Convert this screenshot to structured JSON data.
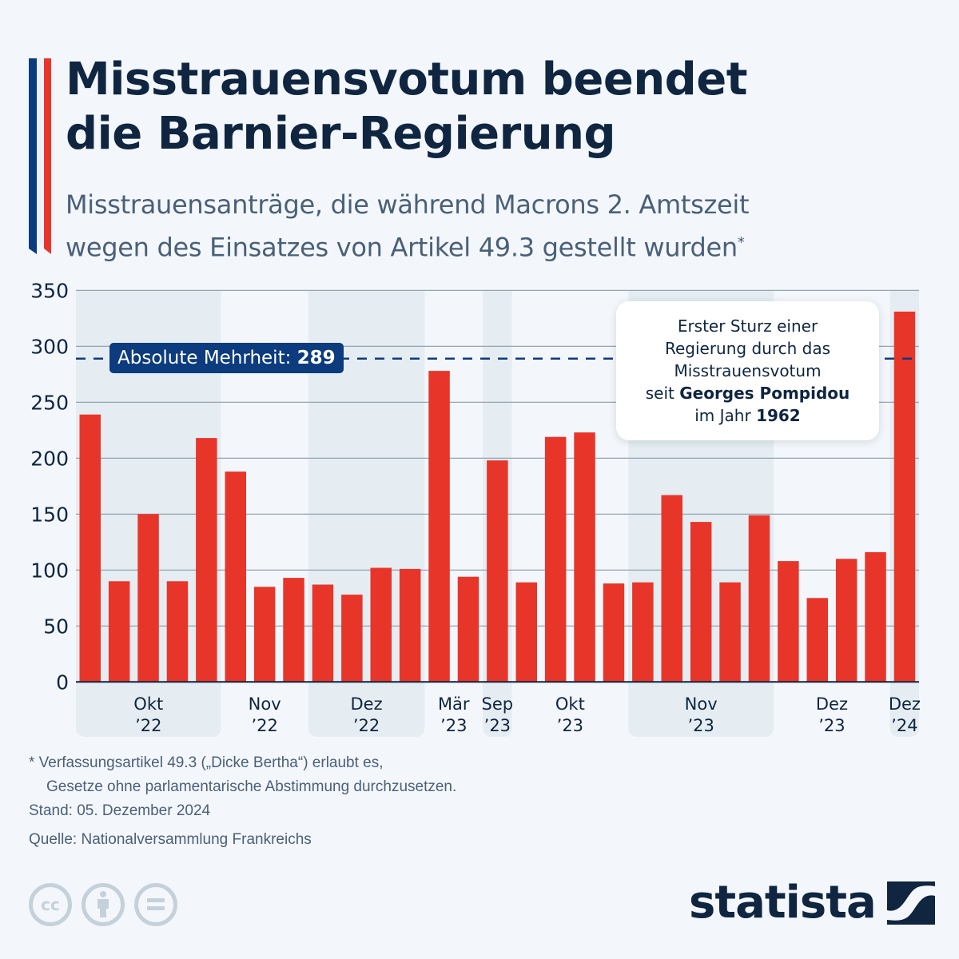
{
  "header": {
    "title_line1": "Misstrauensvotum beendet",
    "title_line2": "die Barnier-Regierung",
    "subtitle_line1": "Misstrauensanträge, die während Macrons 2. Amtszeit",
    "subtitle_line2": "wegen des Einsatzes von Artikel 49.3 gestellt wurden",
    "subtitle_mark": "*"
  },
  "colors": {
    "bar": "#e8352a",
    "navy": "#0f2540",
    "label_bg": "#0c3b7e",
    "band": "#e5edf2",
    "flag_blue": "#0c3b7e",
    "flag_white": "#eef2f8",
    "flag_red": "#e8352a"
  },
  "chart_data": {
    "type": "bar",
    "title": "Misstrauensanträge wegen Artikel 49.3",
    "xlabel": "",
    "ylabel": "",
    "ylim": [
      0,
      350
    ],
    "yticks": [
      0,
      50,
      100,
      150,
      200,
      250,
      300,
      350
    ],
    "grid": true,
    "values": [
      239,
      90,
      150,
      90,
      218,
      188,
      85,
      93,
      87,
      78,
      102,
      101,
      278,
      94,
      198,
      89,
      219,
      223,
      88,
      89,
      167,
      143,
      89,
      149,
      108,
      75,
      110,
      116,
      331
    ],
    "groups": [
      {
        "label_month": "Okt",
        "label_year": "’22",
        "count": 5,
        "shaded": true
      },
      {
        "label_month": "Nov",
        "label_year": "’22",
        "count": 3,
        "shaded": false
      },
      {
        "label_month": "Dez",
        "label_year": "’22",
        "count": 4,
        "shaded": true
      },
      {
        "label_month": "Mär",
        "label_year": "’23",
        "count": 2,
        "shaded": false
      },
      {
        "label_month": "Sep",
        "label_year": "’23",
        "count": 1,
        "shaded": true
      },
      {
        "label_month": "Okt",
        "label_year": "’23",
        "count": 4,
        "shaded": false
      },
      {
        "label_month": "Nov",
        "label_year": "’23",
        "count": 5,
        "shaded": true
      },
      {
        "label_month": "Dez",
        "label_year": "’23",
        "count": 4,
        "shaded": false
      },
      {
        "label_month": "Dez",
        "label_year": "’24",
        "count": 1,
        "shaded": true
      }
    ],
    "reference_line": {
      "value": 289,
      "label": "Absolute Mehrheit:",
      "label_value": "289"
    },
    "annotation": {
      "line1": "Erster Sturz einer",
      "line2": "Regierung durch das",
      "line3": "Misstrauensvotum",
      "line4_prefix": "seit ",
      "line4_bold": "Georges Pompidou",
      "line5_prefix": "im Jahr ",
      "line5_bold": "1962"
    }
  },
  "footer": {
    "footnote_line1": "* Verfassungsartikel 49.3 („Dicke Bertha“) erlaubt es,",
    "footnote_line2": "Gesetze ohne parlamentarische Abstimmung durchzusetzen.",
    "stand": "Stand: 05. Dezember 2024",
    "source": "Quelle: Nationalversammlung Frankreichs",
    "license_icons": [
      "cc-icon",
      "attribution-icon",
      "no-derivatives-icon"
    ],
    "cc_text": "cc",
    "brand": "statista"
  }
}
